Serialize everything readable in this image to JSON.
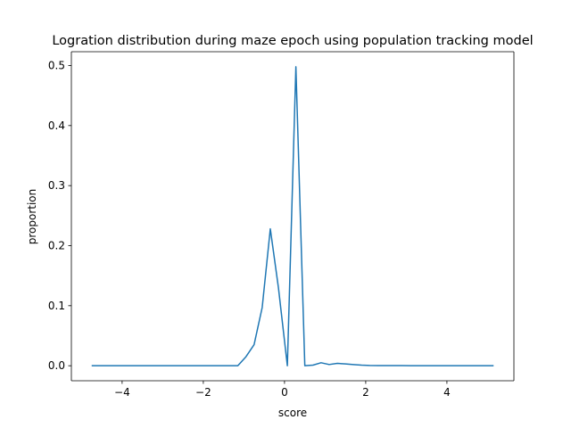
{
  "chart_data": {
    "type": "line",
    "title": "Logration distribution during maze epoch using population tracking model",
    "xlabel": "score",
    "ylabel": "proportion",
    "xlim": [
      -5.25,
      5.65
    ],
    "ylim": [
      -0.025,
      0.523
    ],
    "xticks": [
      -4,
      -2,
      0,
      2,
      4
    ],
    "xtick_labels": [
      "−4",
      "−2",
      "0",
      "2",
      "4"
    ],
    "yticks": [
      0.0,
      0.1,
      0.2,
      0.3,
      0.4,
      0.5
    ],
    "ytick_labels": [
      "0.0",
      "0.1",
      "0.2",
      "0.3",
      "0.4",
      "0.5"
    ],
    "grid": false,
    "line_color": "#1f77b4",
    "series": [
      {
        "x": [
          -4.75,
          -4.55,
          -4.35,
          -4.15,
          -3.95,
          -3.75,
          -3.55,
          -3.35,
          -3.15,
          -2.95,
          -2.75,
          -2.55,
          -2.35,
          -2.15,
          -1.95,
          -1.75,
          -1.55,
          -1.35,
          -1.15,
          -0.95,
          -0.75,
          -0.55,
          -0.35,
          -0.15,
          0.07,
          0.28,
          0.5,
          0.7,
          0.9,
          1.1,
          1.3,
          1.5,
          1.7,
          1.9,
          2.1,
          2.3,
          2.5,
          2.7,
          2.9,
          3.1,
          3.3,
          3.5,
          3.7,
          3.9,
          4.1,
          4.3,
          4.5,
          4.7,
          4.9,
          5.15
        ],
        "y": [
          0,
          0,
          0,
          0,
          0,
          0,
          0,
          0,
          0,
          0,
          0,
          0,
          0,
          0,
          0,
          0,
          0,
          0,
          0,
          0.015,
          0.035,
          0.097,
          0.228,
          0.13,
          0.0,
          0.498,
          0.0,
          0.001,
          0.005,
          0.002,
          0.004,
          0.003,
          0.002,
          0.001,
          0.0005,
          0.0003,
          0.0002,
          0.0002,
          0.0002,
          0.0001,
          0.0001,
          0.0001,
          0.0001,
          0.0001,
          0.0001,
          0.0001,
          0.0001,
          0,
          0,
          0
        ]
      }
    ]
  }
}
